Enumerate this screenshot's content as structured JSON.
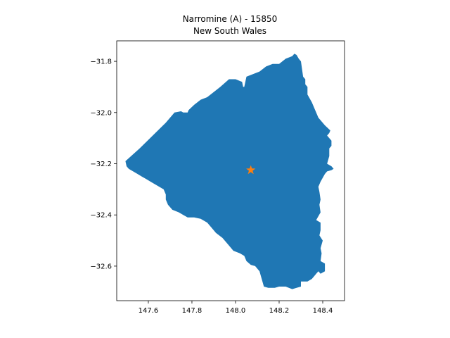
{
  "title_line1": "Narromine (A) - 15850",
  "title_line2": "New South Wales",
  "chart_data": {
    "type": "map",
    "title": "Narromine (A) - 15850\nNew South Wales",
    "xlabel": "",
    "ylabel": "",
    "xlim": [
      147.455,
      148.5
    ],
    "ylim": [
      -32.735,
      -31.72
    ],
    "xticks": [
      147.6,
      147.8,
      148.0,
      148.2,
      148.4
    ],
    "xtick_labels": [
      "147.6",
      "147.8",
      "148.0",
      "148.2",
      "148.4"
    ],
    "yticks": [
      -31.8,
      -32.0,
      -32.2,
      -32.4,
      -32.6
    ],
    "ytick_labels": [
      "−31.8",
      "−32.0",
      "−32.2",
      "−32.4",
      "−32.6"
    ],
    "grid": false,
    "region_color": "#1f77b4",
    "marker": {
      "x": 148.07,
      "y": -32.225,
      "symbol": "star",
      "color": "#ff7f0e"
    },
    "boundary": [
      [
        147.495,
        -32.19
      ],
      [
        147.56,
        -32.14
      ],
      [
        147.62,
        -32.09
      ],
      [
        147.68,
        -32.04
      ],
      [
        147.72,
        -32.0
      ],
      [
        147.75,
        -31.995
      ],
      [
        147.76,
        -32.0
      ],
      [
        147.78,
        -32.0
      ],
      [
        147.785,
        -31.99
      ],
      [
        147.81,
        -31.97
      ],
      [
        147.84,
        -31.95
      ],
      [
        147.87,
        -31.94
      ],
      [
        147.93,
        -31.9
      ],
      [
        147.97,
        -31.87
      ],
      [
        148.0,
        -31.87
      ],
      [
        148.03,
        -31.88
      ],
      [
        148.035,
        -31.9
      ],
      [
        148.04,
        -31.9
      ],
      [
        148.05,
        -31.86
      ],
      [
        148.08,
        -31.85
      ],
      [
        148.11,
        -31.84
      ],
      [
        148.14,
        -31.82
      ],
      [
        148.17,
        -31.81
      ],
      [
        148.2,
        -31.81
      ],
      [
        148.23,
        -31.79
      ],
      [
        148.26,
        -31.78
      ],
      [
        148.27,
        -31.77
      ],
      [
        148.28,
        -31.775
      ],
      [
        148.29,
        -31.79
      ],
      [
        148.3,
        -31.8
      ],
      [
        148.31,
        -31.86
      ],
      [
        148.32,
        -31.87
      ],
      [
        148.32,
        -31.89
      ],
      [
        148.33,
        -31.9
      ],
      [
        148.33,
        -31.93
      ],
      [
        148.35,
        -31.96
      ],
      [
        148.38,
        -32.02
      ],
      [
        148.41,
        -32.05
      ],
      [
        148.435,
        -32.07
      ],
      [
        148.43,
        -32.08
      ],
      [
        148.42,
        -32.09
      ],
      [
        148.43,
        -32.1
      ],
      [
        148.44,
        -32.11
      ],
      [
        148.44,
        -32.13
      ],
      [
        148.43,
        -32.14
      ],
      [
        148.43,
        -32.17
      ],
      [
        148.42,
        -32.2
      ],
      [
        148.44,
        -32.21
      ],
      [
        148.45,
        -32.22
      ],
      [
        148.44,
        -32.225
      ],
      [
        148.42,
        -32.23
      ],
      [
        148.41,
        -32.24
      ],
      [
        148.39,
        -32.27
      ],
      [
        148.38,
        -32.29
      ],
      [
        148.385,
        -32.31
      ],
      [
        148.39,
        -32.34
      ],
      [
        148.385,
        -32.36
      ],
      [
        148.39,
        -32.39
      ],
      [
        148.37,
        -32.42
      ],
      [
        148.39,
        -32.43
      ],
      [
        148.39,
        -32.46
      ],
      [
        148.385,
        -32.48
      ],
      [
        148.4,
        -32.5
      ],
      [
        148.39,
        -32.53
      ],
      [
        148.395,
        -32.55
      ],
      [
        148.39,
        -32.58
      ],
      [
        148.41,
        -32.59
      ],
      [
        148.41,
        -32.62
      ],
      [
        148.39,
        -32.63
      ],
      [
        148.38,
        -32.62
      ],
      [
        148.37,
        -32.63
      ],
      [
        148.36,
        -32.64
      ],
      [
        148.35,
        -32.65
      ],
      [
        148.33,
        -32.66
      ],
      [
        148.3,
        -32.66
      ],
      [
        148.3,
        -32.68
      ],
      [
        148.28,
        -32.685
      ],
      [
        148.26,
        -32.69
      ],
      [
        148.23,
        -32.68
      ],
      [
        148.2,
        -32.68
      ],
      [
        148.18,
        -32.685
      ],
      [
        148.15,
        -32.685
      ],
      [
        148.13,
        -32.68
      ],
      [
        148.12,
        -32.65
      ],
      [
        148.11,
        -32.62
      ],
      [
        148.09,
        -32.6
      ],
      [
        148.07,
        -32.595
      ],
      [
        148.05,
        -32.58
      ],
      [
        148.04,
        -32.56
      ],
      [
        148.02,
        -32.55
      ],
      [
        147.99,
        -32.54
      ],
      [
        147.97,
        -32.52
      ],
      [
        147.94,
        -32.49
      ],
      [
        147.91,
        -32.47
      ],
      [
        147.89,
        -32.45
      ],
      [
        147.87,
        -32.43
      ],
      [
        147.84,
        -32.415
      ],
      [
        147.81,
        -32.41
      ],
      [
        147.78,
        -32.41
      ],
      [
        147.76,
        -32.4
      ],
      [
        147.74,
        -32.39
      ],
      [
        147.71,
        -32.38
      ],
      [
        147.69,
        -32.36
      ],
      [
        147.68,
        -32.34
      ],
      [
        147.68,
        -32.32
      ],
      [
        147.67,
        -32.3
      ],
      [
        147.65,
        -32.29
      ],
      [
        147.63,
        -32.28
      ],
      [
        147.61,
        -32.27
      ],
      [
        147.59,
        -32.26
      ],
      [
        147.57,
        -32.25
      ],
      [
        147.55,
        -32.24
      ],
      [
        147.53,
        -32.23
      ],
      [
        147.51,
        -32.22
      ],
      [
        147.5,
        -32.21
      ],
      [
        147.495,
        -32.19
      ]
    ]
  }
}
